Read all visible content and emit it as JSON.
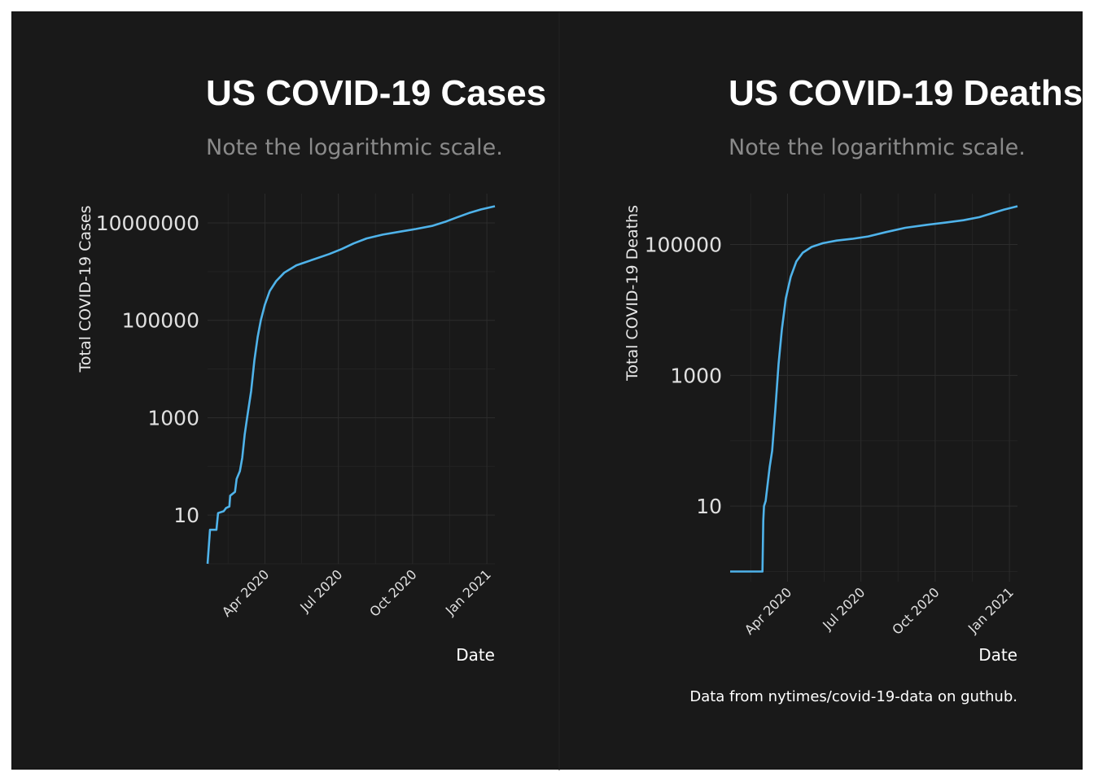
{
  "caption": "Data from nytimes/covid-19-data on guthub.",
  "colors": {
    "background": "#191919",
    "line": "#4fb3ea",
    "grid": "#2c2c2c"
  },
  "chart_data": [
    {
      "type": "line",
      "title": "US COVID-19 Cases",
      "subtitle": "Note the logarithmic scale.",
      "xlabel": "Date",
      "ylabel": "Total COVID-19 Cases",
      "y_scale": "log10",
      "ylim": [
        1,
        40000000
      ],
      "xlim": [
        "2020-01-21",
        "2021-01-11"
      ],
      "y_ticks": [
        10,
        1000,
        100000,
        10000000
      ],
      "y_tick_labels": [
        "10",
        "1000",
        "100000",
        "10000000"
      ],
      "x_ticks": [
        "2020-04-01",
        "2020-07-01",
        "2020-10-01",
        "2021-01-01"
      ],
      "x_tick_labels": [
        "Apr 2020",
        "Jul 2020",
        "Oct 2020",
        "Jan 2021"
      ],
      "grid": true,
      "series": [
        {
          "points": [
            [
              "2020-01-21",
              1
            ],
            [
              "2020-01-24",
              5
            ],
            [
              "2020-02-01",
              5
            ],
            [
              "2020-02-03",
              11
            ],
            [
              "2020-02-10",
              12
            ],
            [
              "2020-02-13",
              14
            ],
            [
              "2020-02-17",
              15
            ],
            [
              "2020-02-18",
              25
            ],
            [
              "2020-02-24",
              30
            ],
            [
              "2020-02-26",
              55
            ],
            [
              "2020-03-01",
              80
            ],
            [
              "2020-03-04",
              150
            ],
            [
              "2020-03-07",
              450
            ],
            [
              "2020-03-10",
              1000
            ],
            [
              "2020-03-15",
              3500
            ],
            [
              "2020-03-19",
              15000
            ],
            [
              "2020-03-23",
              45000
            ],
            [
              "2020-03-27",
              100000
            ],
            [
              "2020-04-01",
              210000
            ],
            [
              "2020-04-07",
              400000
            ],
            [
              "2020-04-15",
              640000
            ],
            [
              "2020-04-25",
              950000
            ],
            [
              "2020-05-10",
              1350000
            ],
            [
              "2020-06-01",
              1800000
            ],
            [
              "2020-06-20",
              2300000
            ],
            [
              "2020-07-05",
              2900000
            ],
            [
              "2020-07-20",
              3800000
            ],
            [
              "2020-08-05",
              4800000
            ],
            [
              "2020-08-25",
              5750000
            ],
            [
              "2020-09-15",
              6600000
            ],
            [
              "2020-10-05",
              7500000
            ],
            [
              "2020-10-25",
              8700000
            ],
            [
              "2020-11-10",
              10500000
            ],
            [
              "2020-11-25",
              13000000
            ],
            [
              "2020-12-10",
              16000000
            ],
            [
              "2020-12-25",
              19000000
            ],
            [
              "2021-01-11",
              22000000
            ]
          ]
        }
      ]
    },
    {
      "type": "line",
      "title": "US COVID-19 Deaths",
      "subtitle": "Note the logarithmic scale.",
      "xlabel": "Date",
      "ylabel": "Total COVID-19 Deaths",
      "y_scale": "log10",
      "ylim": [
        0.7,
        600000
      ],
      "xlim": [
        "2020-01-21",
        "2021-01-11"
      ],
      "y_ticks": [
        10,
        1000,
        100000
      ],
      "y_tick_labels": [
        "10",
        "1000",
        "100000"
      ],
      "x_ticks": [
        "2020-04-01",
        "2020-07-01",
        "2020-10-01",
        "2021-01-01"
      ],
      "x_tick_labels": [
        "Apr 2020",
        "Jul 2020",
        "Oct 2020",
        "Jan 2021"
      ],
      "grid": true,
      "series": [
        {
          "points": [
            [
              "2020-01-21",
              1
            ],
            [
              "2020-03-01",
              1
            ],
            [
              "2020-03-02",
              6
            ],
            [
              "2020-03-03",
              10
            ],
            [
              "2020-03-05",
              12
            ],
            [
              "2020-03-10",
              40
            ],
            [
              "2020-03-13",
              70
            ],
            [
              "2020-03-17",
              300
            ],
            [
              "2020-03-21",
              1500
            ],
            [
              "2020-03-25",
              5000
            ],
            [
              "2020-03-30",
              15000
            ],
            [
              "2020-04-05",
              32000
            ],
            [
              "2020-04-12",
              55000
            ],
            [
              "2020-04-20",
              75000
            ],
            [
              "2020-05-01",
              92000
            ],
            [
              "2020-05-15",
              105000
            ],
            [
              "2020-06-01",
              115000
            ],
            [
              "2020-06-20",
              122000
            ],
            [
              "2020-07-10",
              133000
            ],
            [
              "2020-08-01",
              155000
            ],
            [
              "2020-08-25",
              180000
            ],
            [
              "2020-09-20",
              200000
            ],
            [
              "2020-10-15",
              218000
            ],
            [
              "2020-11-05",
              235000
            ],
            [
              "2020-11-25",
              262000
            ],
            [
              "2020-12-10",
              300000
            ],
            [
              "2020-12-25",
              340000
            ],
            [
              "2021-01-11",
              385000
            ]
          ]
        }
      ]
    }
  ]
}
